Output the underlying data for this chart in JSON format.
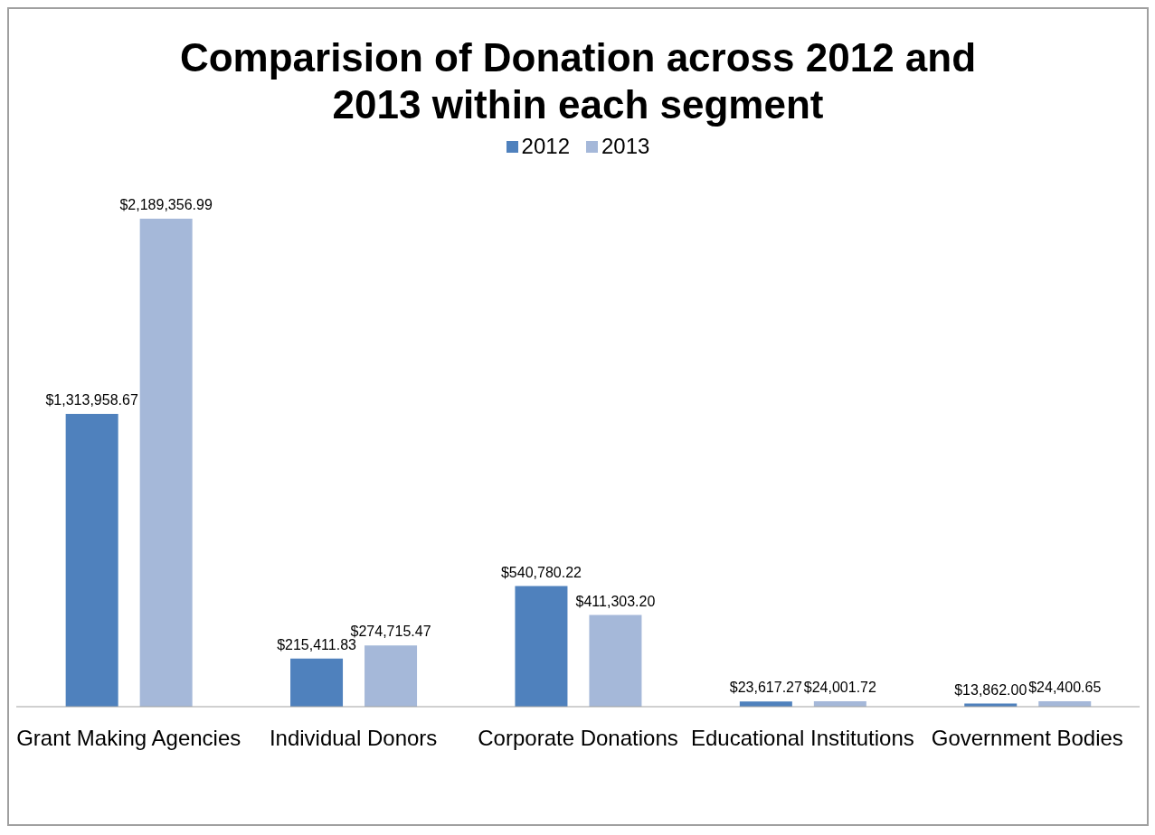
{
  "chart_data": {
    "type": "bar",
    "title": "Comparision of Donation across 2012 and 2013 within each segment",
    "categories": [
      "Grant Making Agencies",
      "Individual Donors",
      "Corporate Donations",
      "Educational Institutions",
      "Government Bodies"
    ],
    "series": [
      {
        "name": "2012",
        "color": "#4f81bd",
        "values": [
          1313958.67,
          215411.83,
          540780.22,
          23617.27,
          13862.0
        ],
        "value_labels": [
          "$1,313,958.67",
          "$215,411.83",
          "$540,780.22",
          "$23,617.27",
          "$13,862.00"
        ]
      },
      {
        "name": "2013",
        "color": "#a5b8d9",
        "values": [
          2189356.99,
          274715.47,
          411303.2,
          24001.72,
          24400.65
        ],
        "value_labels": [
          "$2,189,356.99",
          "$274,715.47",
          "$411,303.20",
          "$24,001.72",
          "$24,400.65"
        ]
      }
    ],
    "legend": "top",
    "grid": false
  }
}
